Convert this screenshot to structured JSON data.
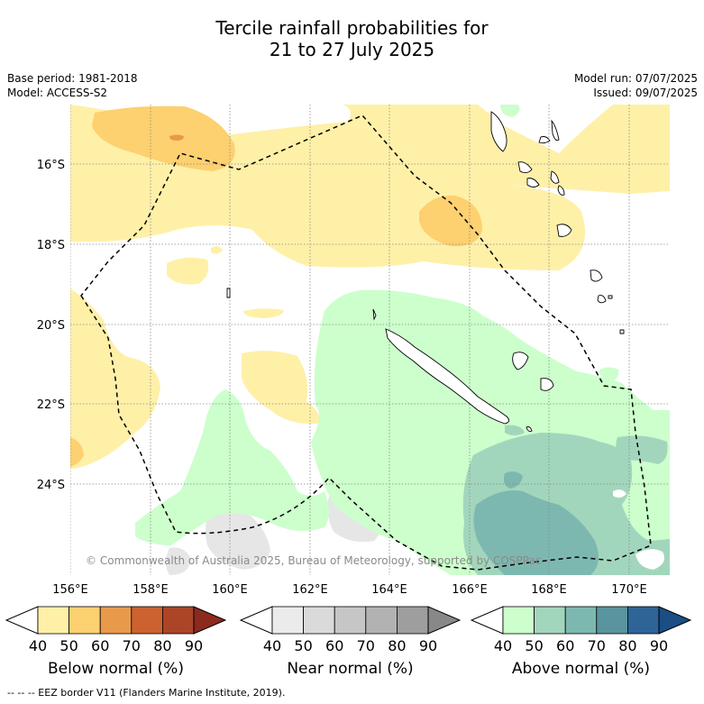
{
  "title_line1": "Tercile rainfall probabilities for",
  "title_line2": "21 to 27 July 2025",
  "base_period": "Base period: 1981-2018",
  "model": "Model: ACCESS-S2",
  "model_run": "Model run: 07/07/2025",
  "issued": "Issued: 09/07/2025",
  "copyright": "© Commonwealth of Australia 2025, Bureau of Meteorology, supported by COSPPac",
  "footer": "--  --  -- EEZ border V11 (Flanders Marine Institute, 2019).",
  "map": {
    "lat_labels": [
      "16°S",
      "18°S",
      "20°S",
      "22°S",
      "24°S"
    ],
    "lon_labels": [
      "156°E",
      "158°E",
      "160°E",
      "162°E",
      "164°E",
      "166°E",
      "168°E",
      "170°E"
    ]
  },
  "colorbars": [
    {
      "title": "Below normal (%)",
      "ticks": [
        "40",
        "50",
        "60",
        "70",
        "80",
        "90"
      ],
      "colors": [
        "#fff0a8",
        "#fdd070",
        "#e89a4a",
        "#cc6230",
        "#ac4428",
        "#8c2a1e"
      ]
    },
    {
      "title": "Near normal (%)",
      "ticks": [
        "40",
        "50",
        "60",
        "70",
        "80",
        "90"
      ],
      "colors": [
        "#ebebeb",
        "#dadada",
        "#c6c6c6",
        "#b2b2b2",
        "#9e9e9e",
        "#888888"
      ]
    },
    {
      "title": "Above normal (%)",
      "ticks": [
        "40",
        "50",
        "60",
        "70",
        "80",
        "90"
      ],
      "colors": [
        "#ccffcc",
        "#a2d6bc",
        "#7db8b0",
        "#5a949e",
        "#2f6497",
        "#1a4e84"
      ]
    }
  ]
}
